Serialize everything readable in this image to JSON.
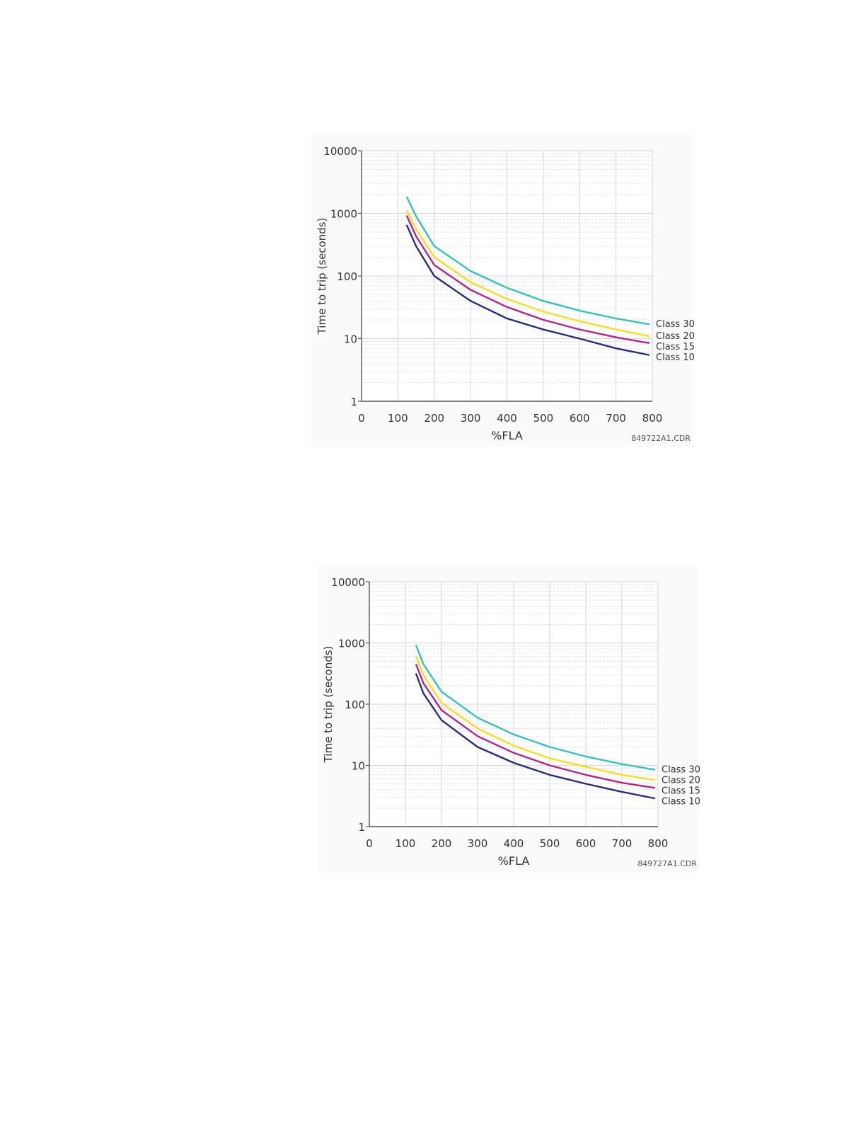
{
  "colors": {
    "class_30": "#33c1c3",
    "class_20": "#f6de1f",
    "class_15": "#b5248a",
    "class_10": "#262c83",
    "axis": "#555555",
    "grid_major": "#d4d4d4",
    "grid_minor": "#dedede",
    "text": "#333333",
    "background": "#fafafa"
  },
  "chart_data": [
    {
      "type": "line",
      "title": "",
      "xlabel": "%FLA",
      "ylabel": "Time to trip (seconds)",
      "xlim": [
        0,
        800
      ],
      "ylim": [
        1,
        10000
      ],
      "y_scale": "log",
      "x_ticks": [
        "0",
        "100",
        "200",
        "300",
        "400",
        "500",
        "600",
        "700",
        "800"
      ],
      "y_ticks": [
        "1",
        "10",
        "100",
        "1000",
        "10000"
      ],
      "grid": true,
      "legend": "right-end-labels",
      "code": "849722A1.CDR",
      "x": [
        125,
        150,
        200,
        300,
        400,
        500,
        600,
        700,
        790
      ],
      "series": [
        {
          "name": "Class 30",
          "color_key": "class_30",
          "values": [
            1800,
            900,
            300,
            120,
            65,
            40,
            28,
            21,
            17
          ]
        },
        {
          "name": "Class 20",
          "color_key": "class_20",
          "values": [
            1100,
            560,
            200,
            80,
            43,
            27,
            19,
            14,
            11
          ]
        },
        {
          "name": "Class 15",
          "color_key": "class_15",
          "values": [
            900,
            430,
            150,
            60,
            32,
            20,
            14,
            10.5,
            8.5
          ]
        },
        {
          "name": "Class 10",
          "color_key": "class_10",
          "values": [
            640,
            300,
            100,
            40,
            21,
            14,
            10,
            7,
            5.5
          ]
        }
      ]
    },
    {
      "type": "line",
      "title": "",
      "xlabel": "%FLA",
      "ylabel": "Time to trip (seconds)",
      "xlim": [
        0,
        800
      ],
      "ylim": [
        1,
        10000
      ],
      "y_scale": "log",
      "x_ticks": [
        "0",
        "100",
        "200",
        "300",
        "400",
        "500",
        "600",
        "700",
        "800"
      ],
      "y_ticks": [
        "1",
        "10",
        "100",
        "1000",
        "10000"
      ],
      "grid": true,
      "legend": "right-end-labels",
      "code": "849727A1.CDR",
      "x": [
        130,
        150,
        200,
        300,
        400,
        500,
        600,
        700,
        790
      ],
      "series": [
        {
          "name": "Class 30",
          "color_key": "class_30",
          "values": [
            900,
            450,
            160,
            60,
            32,
            20,
            14,
            10.5,
            8.5
          ]
        },
        {
          "name": "Class 20",
          "color_key": "class_20",
          "values": [
            600,
            300,
            105,
            40,
            21,
            13,
            9.5,
            7,
            5.8
          ]
        },
        {
          "name": "Class 15",
          "color_key": "class_15",
          "values": [
            440,
            220,
            80,
            30,
            16,
            10,
            7,
            5.2,
            4.3
          ]
        },
        {
          "name": "Class 10",
          "color_key": "class_10",
          "values": [
            310,
            150,
            55,
            20,
            11,
            7,
            5,
            3.7,
            2.9
          ]
        }
      ]
    }
  ]
}
